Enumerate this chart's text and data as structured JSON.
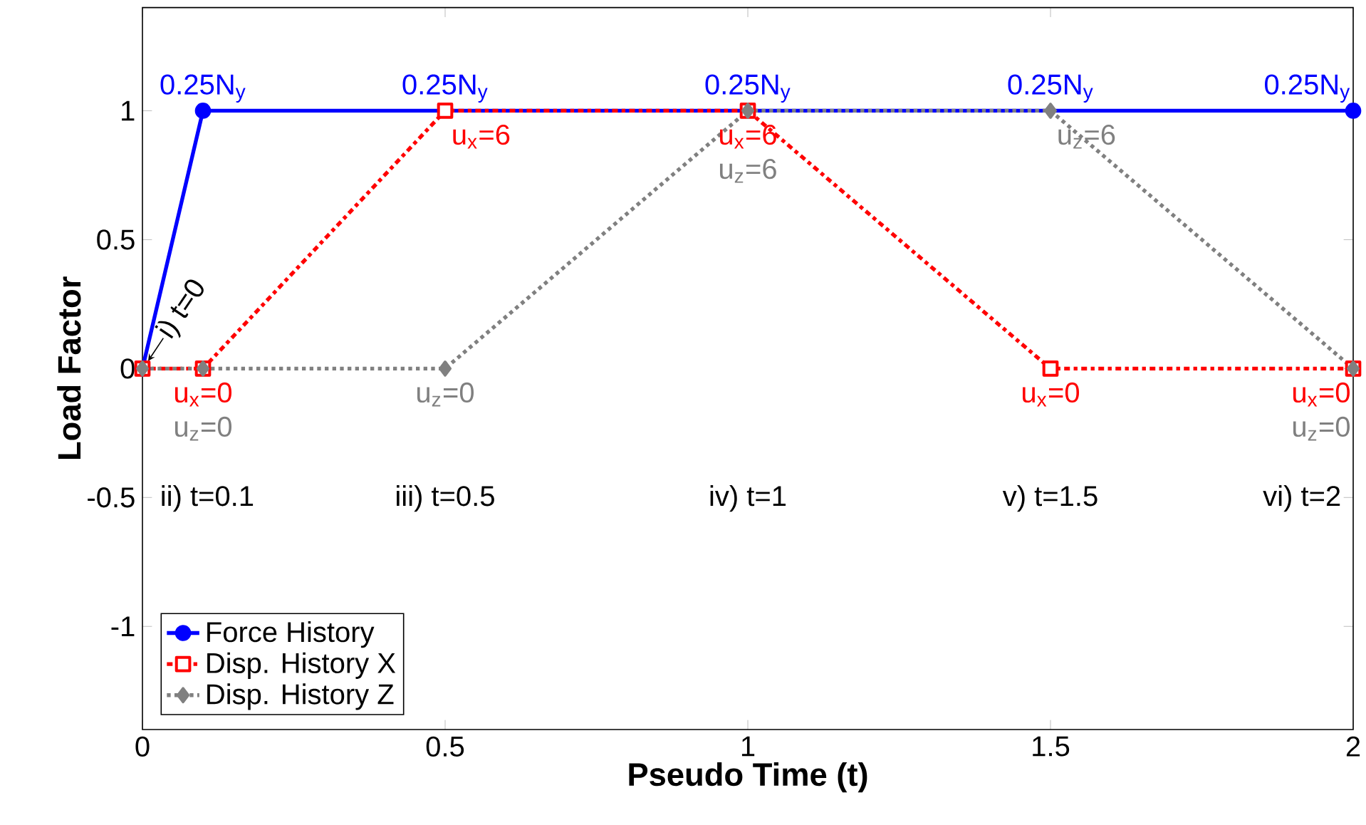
{
  "chart_data": {
    "type": "line",
    "xlabel": "Pseudo Time (t)",
    "ylabel": "Load Factor",
    "xlim": [
      0,
      2
    ],
    "ylim": [
      -1.4,
      1.4
    ],
    "xticks": [
      0,
      0.5,
      1,
      1.5,
      2
    ],
    "yticks": [
      -1,
      -0.5,
      0,
      0.5,
      1
    ],
    "legend": "bottom left",
    "grid": false,
    "series": [
      {
        "name": "Force History",
        "color": "#0000ff",
        "x": [
          0,
          0.1,
          2
        ],
        "values": [
          0,
          1,
          1
        ],
        "marker": "circle",
        "line_style": "solid"
      },
      {
        "name": "Disp. History X",
        "color": "#ff0000",
        "x": [
          0,
          0.1,
          0.5,
          1,
          1.5,
          2
        ],
        "values": [
          0,
          0,
          1,
          1,
          0,
          0
        ],
        "marker": "square",
        "line_style": "dashdot"
      },
      {
        "name": "Disp. History Z",
        "color": "#808080",
        "x": [
          0,
          0.1,
          0.5,
          1,
          1.5,
          2
        ],
        "values": [
          0,
          0,
          0,
          1,
          1,
          0
        ],
        "marker": "diamond",
        "line_style": "dotted"
      }
    ],
    "annotations": [
      {
        "text": "0.25N$_{y}$",
        "x": 0.1,
        "y": 1
      },
      {
        "text": "0.25N$_{y}$",
        "x": 0.5,
        "y": 1
      },
      {
        "text": "0.25N$_{y}$",
        "x": 1,
        "y": 1
      },
      {
        "text": "0.25N$_{y}$",
        "x": 1.5,
        "y": 1
      },
      {
        "text": "0.25N$_{y}$",
        "x": 2,
        "y": 1
      },
      {
        "text": "u$_{x}$=6",
        "x": 0.5,
        "y": 1
      },
      {
        "text": "u$_{x}$=6",
        "x": 1,
        "y": 1
      },
      {
        "text": "u$_{z}$=6",
        "x": 1,
        "y": 1
      },
      {
        "text": "u$_{z}$=6",
        "x": 1.5,
        "y": 1
      },
      {
        "text": "u$_{x}$=0",
        "x": 0.1,
        "y": 0
      },
      {
        "text": "u$_{z}$=0",
        "x": 0.1,
        "y": 0
      },
      {
        "text": "u$_{z}$=0",
        "x": 0.5,
        "y": 0
      },
      {
        "text": "u$_{x}$=0",
        "x": 1.5,
        "y": 0
      },
      {
        "text": "u$_{x}$=0",
        "x": 2,
        "y": 0
      },
      {
        "text": "u$_{z}$=0",
        "x": 2,
        "y": 0
      },
      "i) t=0",
      "ii) t=0.1",
      "iii) t=0.5",
      "iv) t=1",
      "v) t=1.5",
      "vi) t=2"
    ]
  }
}
